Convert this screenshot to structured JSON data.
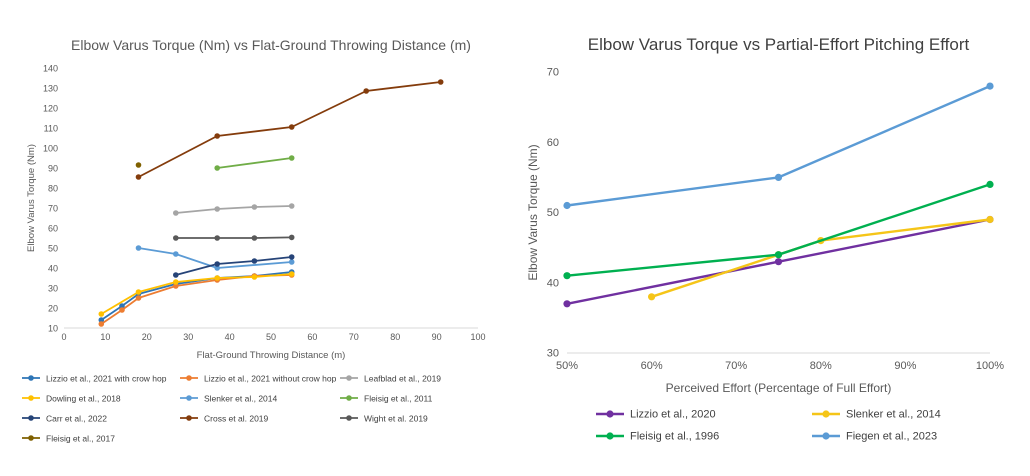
{
  "chart_data": [
    {
      "type": "line",
      "title": "Elbow Varus Torque (Nm) vs Flat-Ground Throwing Distance (m)",
      "xlabel": "Flat-Ground Throwing Distance (m)",
      "ylabel": "Elbow Varus Torque (Nm)",
      "xlim": [
        0,
        100
      ],
      "ylim": [
        10,
        140
      ],
      "xticks": [
        "0",
        "10",
        "20",
        "30",
        "40",
        "50",
        "60",
        "70",
        "80",
        "90",
        "100"
      ],
      "yticks": [
        "10",
        "20",
        "30",
        "40",
        "50",
        "60",
        "70",
        "80",
        "90",
        "100",
        "110",
        "120",
        "130",
        "140"
      ],
      "grid": false,
      "legend_position": "bottom",
      "series": [
        {
          "name": "Lizzio et al., 2021 with crow hop",
          "color": "#2e75b6",
          "points": [
            [
              9,
              14
            ],
            [
              14,
              21
            ],
            [
              18,
              27
            ],
            [
              27,
              32
            ],
            [
              37,
              35
            ],
            [
              46,
              36
            ],
            [
              55,
              38
            ]
          ]
        },
        {
          "name": "Lizzio et al., 2021 without crow hop",
          "color": "#ed7d31",
          "points": [
            [
              9,
              12
            ],
            [
              14,
              19
            ],
            [
              18,
              25
            ],
            [
              27,
              31
            ],
            [
              37,
              34
            ],
            [
              46,
              36
            ],
            [
              55,
              36.5
            ]
          ]
        },
        {
          "name": "Leafblad et al., 2019",
          "color": "#a5a5a5",
          "points": [
            [
              27,
              67.5
            ],
            [
              37,
              69.5
            ],
            [
              46,
              70.5
            ],
            [
              55,
              71
            ]
          ]
        },
        {
          "name": "Dowling et al., 2018",
          "color": "#ffc000",
          "points": [
            [
              9,
              17
            ],
            [
              18,
              28
            ],
            [
              27,
              33
            ],
            [
              37,
              35
            ],
            [
              46,
              35.5
            ],
            [
              55,
              37
            ]
          ]
        },
        {
          "name": "Slenker et al., 2014",
          "color": "#5b9bd5",
          "points": [
            [
              18,
              50
            ],
            [
              27,
              47
            ],
            [
              37,
              40
            ],
            [
              55,
              43
            ]
          ]
        },
        {
          "name": "Fleisig et al., 2011",
          "color": "#70ad47",
          "points": [
            [
              37,
              90
            ],
            [
              55,
              95
            ]
          ]
        },
        {
          "name": "Carr et al., 2022",
          "color": "#264478",
          "points": [
            [
              27,
              36.5
            ],
            [
              37,
              42
            ],
            [
              46,
              43.5
            ],
            [
              55,
              45.5
            ]
          ]
        },
        {
          "name": "Cross et al. 2019",
          "color": "#843c0c",
          "points": [
            [
              18,
              85.5
            ],
            [
              37,
              106
            ],
            [
              55,
              110.5
            ],
            [
              73,
              128.5
            ],
            [
              91,
              133
            ]
          ]
        },
        {
          "name": "Wight et al. 2019",
          "color": "#595959",
          "points": [
            [
              27,
              55
            ],
            [
              37,
              55
            ],
            [
              46,
              55
            ],
            [
              55,
              55.3
            ]
          ]
        },
        {
          "name": "Fleisig et al., 2017",
          "color": "#7f6000",
          "points": [
            [
              18,
              91.5
            ]
          ]
        }
      ]
    },
    {
      "type": "line",
      "title": "Elbow Varus Torque vs Partial-Effort Pitching Effort",
      "xlabel": "Perceived Effort (Percentage of Full Effort)",
      "ylabel": "Elbow Varus Torque (Nm)",
      "xlim": [
        50,
        100
      ],
      "ylim": [
        30,
        70
      ],
      "xticks": [
        "50%",
        "60%",
        "70%",
        "80%",
        "90%",
        "100%"
      ],
      "yticks": [
        "30",
        "40",
        "50",
        "60",
        "70"
      ],
      "grid": false,
      "legend_position": "bottom",
      "series": [
        {
          "name": "Lizzio et al., 2020",
          "color": "#7030a0",
          "points": [
            [
              50,
              37
            ],
            [
              75,
              43
            ],
            [
              100,
              49
            ]
          ]
        },
        {
          "name": "Slenker et al., 2014",
          "color": "#f5c518",
          "points": [
            [
              60,
              38
            ],
            [
              75,
              44
            ],
            [
              80,
              46
            ],
            [
              100,
              49
            ]
          ]
        },
        {
          "name": "Fleisig et al., 1996",
          "color": "#00b050",
          "points": [
            [
              50,
              41
            ],
            [
              75,
              44
            ],
            [
              100,
              54
            ]
          ]
        },
        {
          "name": "Fiegen et al., 2023",
          "color": "#5b9bd5",
          "points": [
            [
              50,
              51
            ],
            [
              75,
              55
            ],
            [
              100,
              68
            ]
          ]
        }
      ]
    }
  ]
}
